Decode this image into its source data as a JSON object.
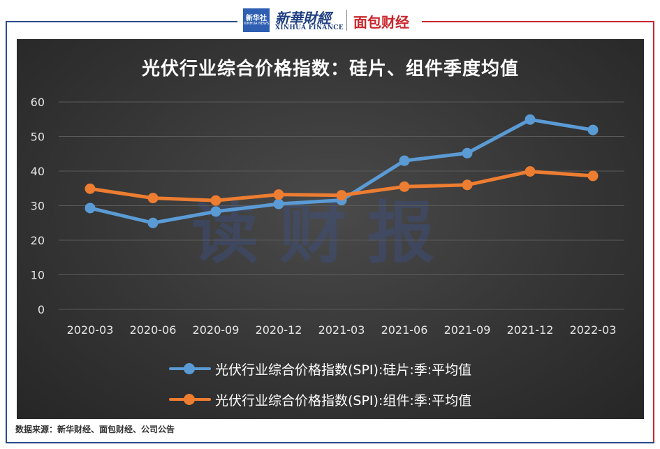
{
  "header": {
    "xinhuashe_logo": "新华社",
    "xinhuashe_sub": "XINHUA NEWS",
    "xinhua_finance_cn": "新華財經",
    "xinhua_finance_en": "XINHUA FINANCE",
    "mianbao_logo": "面包财经"
  },
  "watermark": "读财报",
  "source_note": "数据来源：新华财经、面包财经、公司公告",
  "colors": {
    "silicon": "#5b9bd5",
    "module": "#ed7d31",
    "grid": "#5a5a5a",
    "text": "#e6e6e6"
  },
  "chart_data": {
    "type": "line",
    "title": "光伏行业综合价格指数：硅片、组件季度均值",
    "categories": [
      "2020-03",
      "2020-06",
      "2020-09",
      "2020-12",
      "2021-03",
      "2021-06",
      "2021-09",
      "2021-12",
      "2022-03"
    ],
    "ylim": [
      0,
      60
    ],
    "yticks": [
      0,
      10,
      20,
      30,
      40,
      50,
      60
    ],
    "grid": true,
    "legend": "bottom",
    "series": [
      {
        "name": "光伏行业综合价格指数(SPI):硅片:季:平均值",
        "values": [
          29.3,
          25.0,
          28.3,
          30.5,
          31.6,
          43.0,
          45.2,
          54.9,
          51.9
        ]
      },
      {
        "name": "光伏行业综合价格指数(SPI):组件:季:平均值",
        "values": [
          34.9,
          32.2,
          31.5,
          33.2,
          33.0,
          35.5,
          36.0,
          39.9,
          38.6
        ]
      }
    ]
  }
}
